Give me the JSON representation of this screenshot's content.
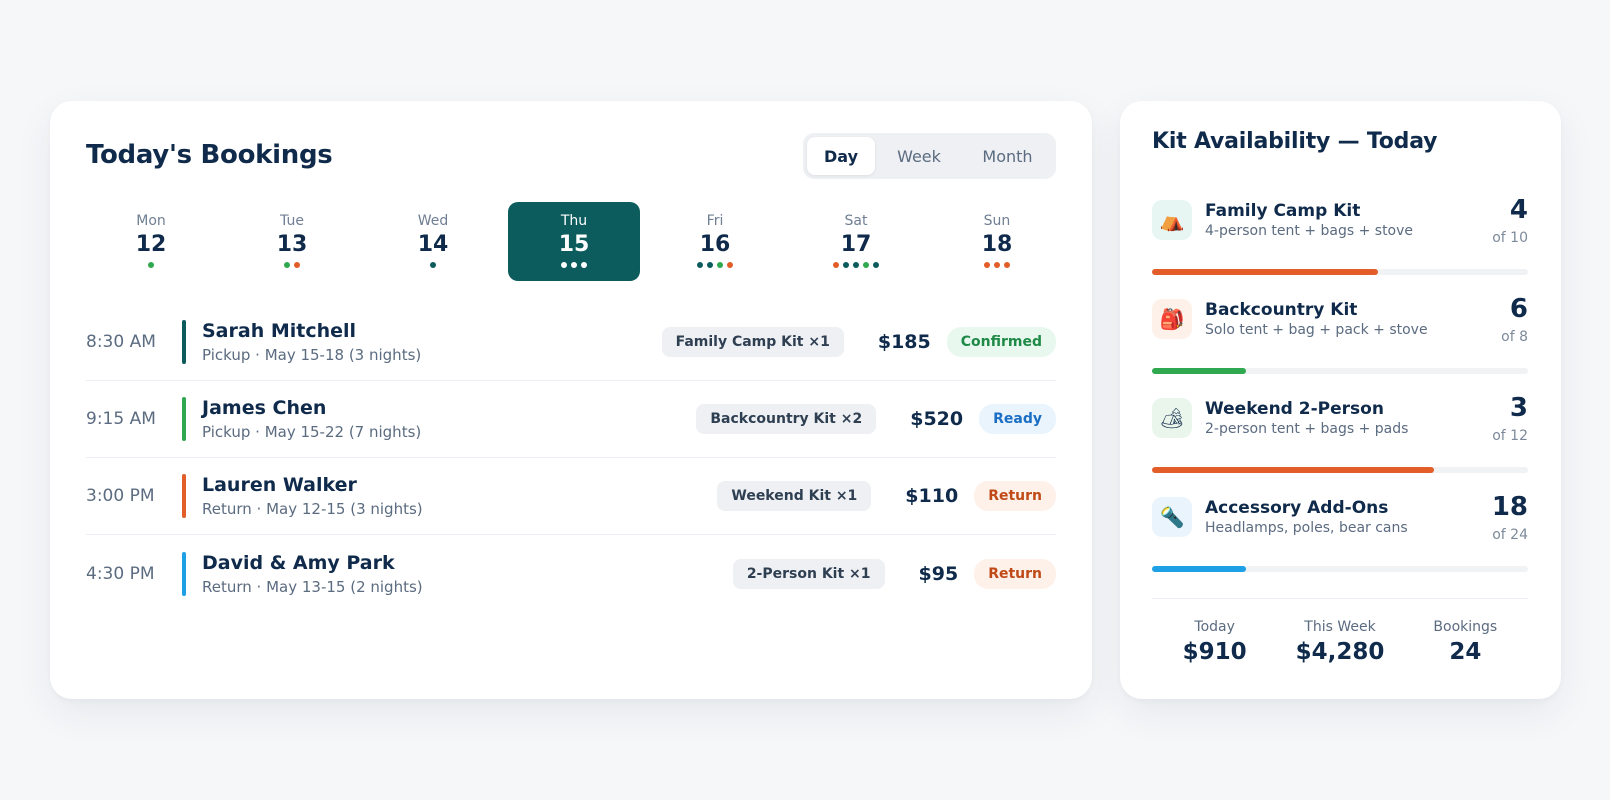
{
  "bookings": {
    "title": "Today's Bookings",
    "view_toggle": {
      "day": "Day",
      "week": "Week",
      "month": "Month",
      "selected": "Day"
    },
    "days": [
      {
        "name": "Mon",
        "num": "12",
        "dots": [
          "#2fa84f"
        ]
      },
      {
        "name": "Tue",
        "num": "13",
        "dots": [
          "#2fa84f",
          "#e35d28"
        ]
      },
      {
        "name": "Wed",
        "num": "14",
        "dots": [
          "#0c5c5d"
        ]
      },
      {
        "name": "Thu",
        "num": "15",
        "dots": [
          "#ffffff",
          "#ffffff",
          "#ffffff"
        ],
        "selected": true
      },
      {
        "name": "Fri",
        "num": "16",
        "dots": [
          "#0c5c5d",
          "#0c5c5d",
          "#2fa84f",
          "#e35d28"
        ]
      },
      {
        "name": "Sat",
        "num": "17",
        "dots": [
          "#e35d28",
          "#0c5c5d",
          "#0c5c5d",
          "#2fa84f",
          "#0c5c5d"
        ]
      },
      {
        "name": "Sun",
        "num": "18",
        "dots": [
          "#e35d28",
          "#e35d28",
          "#e35d28"
        ]
      }
    ],
    "rows": [
      {
        "time": "8:30 AM",
        "name": "Sarah Mitchell",
        "detail": "Pickup · May 15-18 (3 nights)",
        "kit": "Family Camp Kit ×1",
        "price": "$185",
        "status": "Confirmed",
        "bar_color": "#0c5c5d",
        "status_bg": "#e9f8ef",
        "status_color": "#1f8a47"
      },
      {
        "time": "9:15 AM",
        "name": "James Chen",
        "detail": "Pickup · May 15-22 (7 nights)",
        "kit": "Backcountry Kit ×2",
        "price": "$520",
        "status": "Ready",
        "bar_color": "#2fa84f",
        "status_bg": "#eaf4fd",
        "status_color": "#1a6fc4"
      },
      {
        "time": "3:00 PM",
        "name": "Lauren Walker",
        "detail": "Return · May 12-15 (3 nights)",
        "kit": "Weekend Kit ×1",
        "price": "$110",
        "status": "Return",
        "bar_color": "#e35d28",
        "status_bg": "#fdf1ea",
        "status_color": "#c04a17"
      },
      {
        "time": "4:30 PM",
        "name": "David & Amy Park",
        "detail": "Return · May 13-15 (2 nights)",
        "kit": "2-Person Kit ×1",
        "price": "$95",
        "status": "Return",
        "bar_color": "#1ea0e6",
        "status_bg": "#fdf1ea",
        "status_color": "#c04a17"
      }
    ]
  },
  "kits": {
    "title": "Kit Availability — Today",
    "items": [
      {
        "icon": "tent-icon",
        "glyph": "⛺",
        "icon_bg": "#e7f5f3",
        "name": "Family Camp Kit",
        "desc": "4-person tent + bags + stove",
        "available": 4,
        "total": 10,
        "of_label": "of 10",
        "fill_fraction": 0.6,
        "bar_color": "#e35d28"
      },
      {
        "icon": "backpack-icon",
        "glyph": "🎒",
        "icon_bg": "#fdf1ea",
        "name": "Backcountry Kit",
        "desc": "Solo tent + bag + pack + stove",
        "available": 6,
        "total": 8,
        "of_label": "of 8",
        "fill_fraction": 0.25,
        "bar_color": "#2fa84f"
      },
      {
        "icon": "campsite-icon",
        "glyph": "🏕",
        "icon_bg": "#eaf6ec",
        "name": "Weekend 2-Person",
        "desc": "2-person tent + bags + pads",
        "available": 3,
        "total": 12,
        "of_label": "of 12",
        "fill_fraction": 0.75,
        "bar_color": "#e35d28"
      },
      {
        "icon": "flashlight-icon",
        "glyph": "🔦",
        "icon_bg": "#eaf4fd",
        "name": "Accessory Add-Ons",
        "desc": "Headlamps, poles, bear cans",
        "available": 18,
        "total": 24,
        "of_label": "of 24",
        "fill_fraction": 0.25,
        "bar_color": "#1ea0e6"
      }
    ],
    "stats": [
      {
        "label": "Today",
        "value": "$910"
      },
      {
        "label": "This Week",
        "value": "$4,280"
      },
      {
        "label": "Bookings",
        "value": "24"
      }
    ]
  }
}
